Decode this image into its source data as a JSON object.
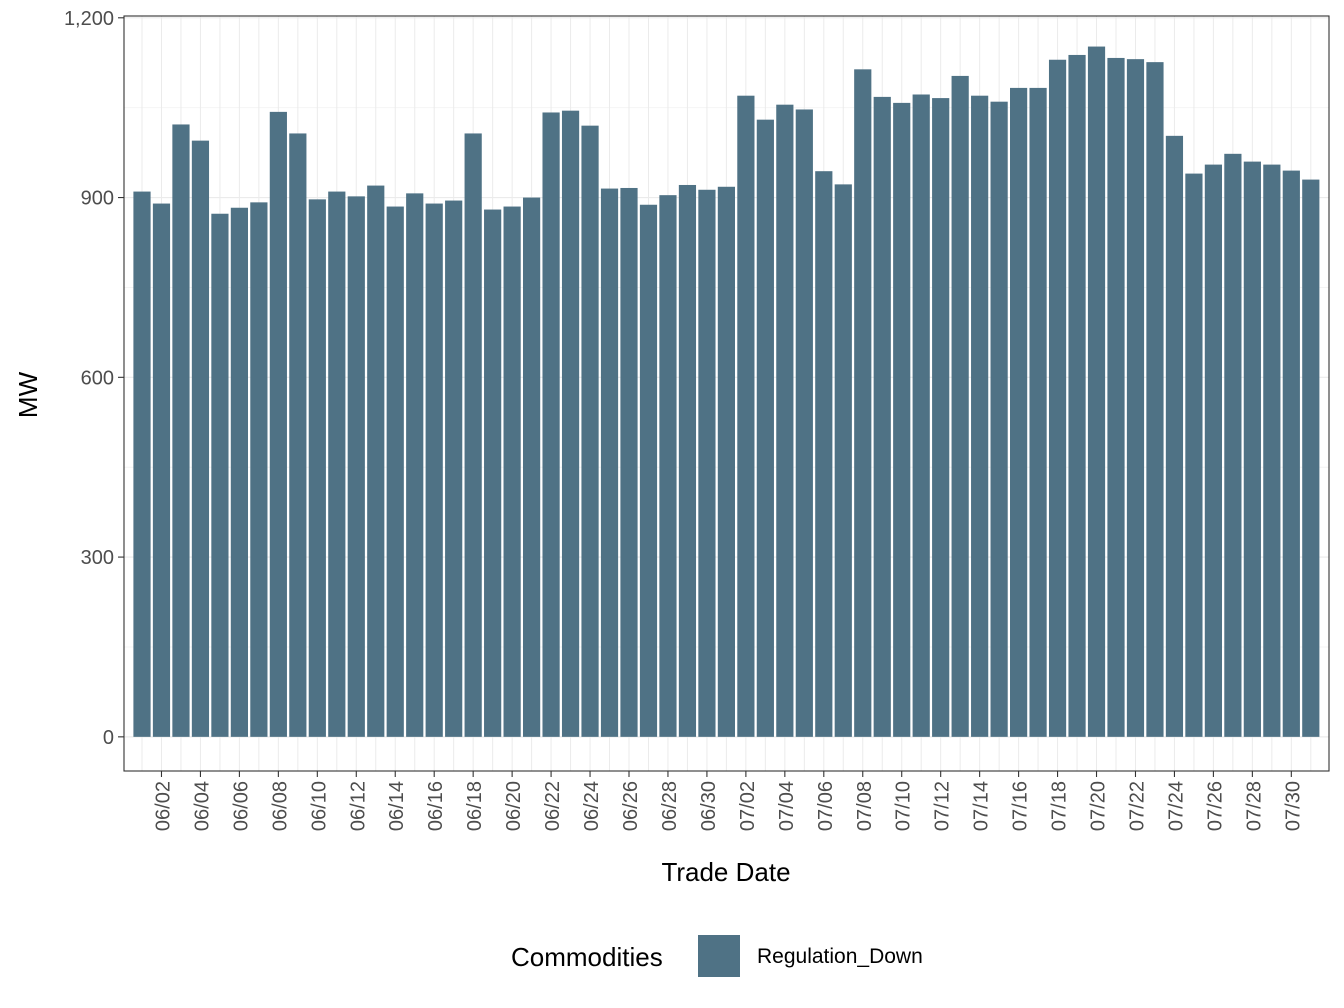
{
  "colors": {
    "bar": "#4f7285",
    "grid_major": "#ebebeb",
    "grid_minor": "#f4f4f4",
    "panel_border": "#333333",
    "tick_text": "#4d4d4d"
  },
  "chart_data": {
    "type": "bar",
    "title": "",
    "xlabel": "Trade Date",
    "ylabel": "MW",
    "ylim": [
      -57,
      1203
    ],
    "yticks": [
      0,
      300,
      600,
      900,
      1200
    ],
    "ytick_labels": [
      "0",
      "300",
      "600",
      "900",
      "1,200"
    ],
    "grid": true,
    "legend": {
      "title": "Commodities",
      "position": "bottom",
      "entries": [
        "Regulation_Down"
      ]
    },
    "categories": [
      "06/01",
      "06/02",
      "06/03",
      "06/04",
      "06/05",
      "06/06",
      "06/07",
      "06/08",
      "06/09",
      "06/10",
      "06/11",
      "06/12",
      "06/13",
      "06/14",
      "06/15",
      "06/16",
      "06/17",
      "06/18",
      "06/19",
      "06/20",
      "06/21",
      "06/22",
      "06/23",
      "06/24",
      "06/25",
      "06/26",
      "06/27",
      "06/28",
      "06/29",
      "06/30",
      "07/01",
      "07/02",
      "07/03",
      "07/04",
      "07/05",
      "07/06",
      "07/07",
      "07/08",
      "07/09",
      "07/10",
      "07/11",
      "07/12",
      "07/13",
      "07/14",
      "07/15",
      "07/16",
      "07/17",
      "07/18",
      "07/19",
      "07/20",
      "07/21",
      "07/22",
      "07/23",
      "07/24",
      "07/25",
      "07/26",
      "07/27",
      "07/28",
      "07/29",
      "07/30",
      "07/31"
    ],
    "xtick_labels": [
      "06/02",
      "06/04",
      "06/06",
      "06/08",
      "06/10",
      "06/12",
      "06/14",
      "06/16",
      "06/18",
      "06/20",
      "06/22",
      "06/24",
      "06/26",
      "06/28",
      "06/30",
      "07/02",
      "07/04",
      "07/06",
      "07/08",
      "07/10",
      "07/12",
      "07/14",
      "07/16",
      "07/18",
      "07/20",
      "07/22",
      "07/24",
      "07/26",
      "07/28",
      "07/30"
    ],
    "series": [
      {
        "name": "Regulation_Down",
        "values": [
          910,
          890,
          1022,
          995,
          873,
          883,
          892,
          1043,
          1007,
          897,
          910,
          902,
          920,
          885,
          907,
          890,
          895,
          1007,
          880,
          885,
          900,
          1042,
          1045,
          1020,
          915,
          916,
          888,
          904,
          921,
          913,
          918,
          1070,
          1030,
          1055,
          1047,
          944,
          922,
          1114,
          1068,
          1058,
          1072,
          1066,
          1103,
          1070,
          1060,
          1083,
          1083,
          1130,
          1138,
          1152,
          1133,
          1131,
          1126,
          1003,
          940,
          955,
          973,
          960,
          955,
          945,
          930
        ]
      }
    ]
  }
}
